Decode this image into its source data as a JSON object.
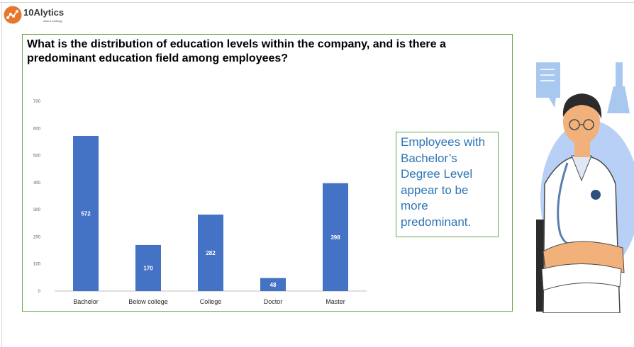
{
  "logo": {
    "text": "10Alytics",
    "tagline": "data & strategy"
  },
  "question": "What is the distribution of education levels within the company, and is there a predominant education field among employees?",
  "callout": "Employees with Bachelor’s Degree Level appear to be more predominant.",
  "colors": {
    "bar": "#4472c4",
    "panel_border": "#6aa84f",
    "callout_text": "#2e75b6",
    "logo_orange": "#e8772e"
  },
  "chart_data": {
    "type": "bar",
    "title": "",
    "xlabel": "",
    "ylabel": "",
    "categories": [
      "Bachelor",
      "Below college",
      "College",
      "Doctor",
      "Master"
    ],
    "values": [
      572,
      170,
      282,
      48,
      398
    ],
    "yticks": [
      0,
      100,
      200,
      300,
      400,
      500,
      600,
      700
    ],
    "ylim": [
      0,
      700
    ],
    "grid": false,
    "legend": "none",
    "data_labels": true
  }
}
